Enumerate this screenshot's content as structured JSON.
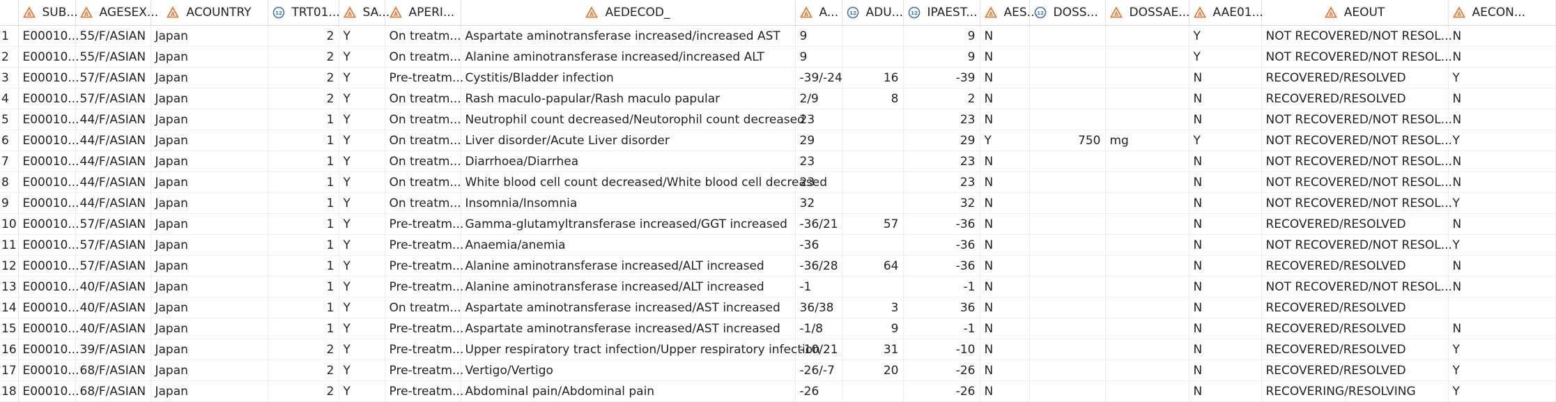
{
  "columns": [
    {
      "key": "rownum",
      "label": "",
      "icon": "none"
    },
    {
      "key": "sub",
      "label": "SUB...",
      "icon": "char-icon"
    },
    {
      "key": "agesex",
      "label": "AGESEX...",
      "icon": "char-icon"
    },
    {
      "key": "acountry",
      "label": "ACOUNTRY",
      "icon": "char-icon"
    },
    {
      "key": "trt01",
      "label": "TRT01...",
      "icon": "numeric-icon"
    },
    {
      "key": "sa",
      "label": "SA...",
      "icon": "char-icon"
    },
    {
      "key": "aperi",
      "label": "APERI...",
      "icon": "char-icon"
    },
    {
      "key": "aedecod",
      "label": "AEDECOD_",
      "icon": "char-icon"
    },
    {
      "key": "a",
      "label": "A...",
      "icon": "char-icon"
    },
    {
      "key": "adu",
      "label": "ADU...",
      "icon": "numeric-icon"
    },
    {
      "key": "ipaest",
      "label": "IPAEST...",
      "icon": "numeric-icon"
    },
    {
      "key": "aes",
      "label": "AES...",
      "icon": "char-icon"
    },
    {
      "key": "doss",
      "label": "DOSS...",
      "icon": "numeric-icon"
    },
    {
      "key": "dossae",
      "label": "DOSSAE...",
      "icon": "char-icon"
    },
    {
      "key": "aae01",
      "label": "AAE01...",
      "icon": "char-icon"
    },
    {
      "key": "aeout",
      "label": "AEOUT",
      "icon": "char-icon"
    },
    {
      "key": "aecon",
      "label": "AECON...",
      "icon": "char-icon"
    }
  ],
  "rows": [
    [
      "1",
      "E00010...",
      "55/F/ASIAN",
      "Japan",
      "2",
      "Y",
      "On treatm...",
      "Aspartate aminotransferase increased/increased AST",
      "9",
      "",
      "9",
      "N",
      "",
      "",
      "Y",
      "NOT RECOVERED/NOT RESOL...",
      "N"
    ],
    [
      "2",
      "E00010...",
      "55/F/ASIAN",
      "Japan",
      "2",
      "Y",
      "On treatm...",
      "Alanine aminotransferase increased/increased ALT",
      "9",
      "",
      "9",
      "N",
      "",
      "",
      "Y",
      "NOT RECOVERED/NOT RESOL...",
      "N"
    ],
    [
      "3",
      "E00010...",
      "57/F/ASIAN",
      "Japan",
      "2",
      "Y",
      "Pre-treatm...",
      "Cystitis/Bladder infection",
      "-39/-24",
      "16",
      "-39",
      "N",
      "",
      "",
      "N",
      "RECOVERED/RESOLVED",
      "Y"
    ],
    [
      "4",
      "E00010...",
      "57/F/ASIAN",
      "Japan",
      "2",
      "Y",
      "On treatm...",
      "Rash maculo-papular/Rash maculo papular",
      "2/9",
      "8",
      "2",
      "N",
      "",
      "",
      "N",
      "RECOVERED/RESOLVED",
      "N"
    ],
    [
      "5",
      "E00010...",
      "44/F/ASIAN",
      "Japan",
      "1",
      "Y",
      "On treatm...",
      "Neutrophil count decreased/Neutorophil count decreased",
      "23",
      "",
      "23",
      "N",
      "",
      "",
      "N",
      "NOT RECOVERED/NOT RESOL...",
      "N"
    ],
    [
      "6",
      "E00010...",
      "44/F/ASIAN",
      "Japan",
      "1",
      "Y",
      "On treatm...",
      "Liver disorder/Acute Liver disorder",
      "29",
      "",
      "29",
      "Y",
      "750",
      "mg",
      "Y",
      "NOT RECOVERED/NOT RESOL...",
      "Y"
    ],
    [
      "7",
      "E00010...",
      "44/F/ASIAN",
      "Japan",
      "1",
      "Y",
      "On treatm...",
      "Diarrhoea/Diarrhea",
      "23",
      "",
      "23",
      "N",
      "",
      "",
      "N",
      "NOT RECOVERED/NOT RESOL...",
      "N"
    ],
    [
      "8",
      "E00010...",
      "44/F/ASIAN",
      "Japan",
      "1",
      "Y",
      "On treatm...",
      "White blood cell count decreased/White blood cell decreased",
      "23",
      "",
      "23",
      "N",
      "",
      "",
      "N",
      "NOT RECOVERED/NOT RESOL...",
      "N"
    ],
    [
      "9",
      "E00010...",
      "44/F/ASIAN",
      "Japan",
      "1",
      "Y",
      "On treatm...",
      "Insomnia/Insomnia",
      "32",
      "",
      "32",
      "N",
      "",
      "",
      "N",
      "NOT RECOVERED/NOT RESOL...",
      "Y"
    ],
    [
      "10",
      "E00010...",
      "57/F/ASIAN",
      "Japan",
      "1",
      "Y",
      "Pre-treatm...",
      "Gamma-glutamyltransferase increased/GGT increased",
      "-36/21",
      "57",
      "-36",
      "N",
      "",
      "",
      "N",
      "RECOVERED/RESOLVED",
      "N"
    ],
    [
      "11",
      "E00010...",
      "57/F/ASIAN",
      "Japan",
      "1",
      "Y",
      "Pre-treatm...",
      "Anaemia/anemia",
      "-36",
      "",
      "-36",
      "N",
      "",
      "",
      "N",
      "NOT RECOVERED/NOT RESOL...",
      "Y"
    ],
    [
      "12",
      "E00010...",
      "57/F/ASIAN",
      "Japan",
      "1",
      "Y",
      "Pre-treatm...",
      "Alanine aminotransferase increased/ALT increased",
      "-36/28",
      "64",
      "-36",
      "N",
      "",
      "",
      "N",
      "RECOVERED/RESOLVED",
      "N"
    ],
    [
      "13",
      "E00010...",
      "40/F/ASIAN",
      "Japan",
      "1",
      "Y",
      "Pre-treatm...",
      "Alanine aminotransferase increased/ALT increased",
      "-1",
      "",
      "-1",
      "N",
      "",
      "",
      "N",
      "NOT RECOVERED/NOT RESOL...",
      "N"
    ],
    [
      "14",
      "E00010...",
      "40/F/ASIAN",
      "Japan",
      "1",
      "Y",
      "On treatm...",
      "Aspartate aminotransferase increased/AST increased",
      "36/38",
      "3",
      "36",
      "N",
      "",
      "",
      "N",
      "RECOVERED/RESOLVED",
      ""
    ],
    [
      "15",
      "E00010...",
      "40/F/ASIAN",
      "Japan",
      "1",
      "Y",
      "Pre-treatm...",
      "Aspartate aminotransferase increased/AST increased",
      "-1/8",
      "9",
      "-1",
      "N",
      "",
      "",
      "N",
      "RECOVERED/RESOLVED",
      "N"
    ],
    [
      "16",
      "E00010...",
      "39/F/ASIAN",
      "Japan",
      "2",
      "Y",
      "Pre-treatm...",
      "Upper respiratory tract infection/Upper respiratory infection",
      "-10/21",
      "31",
      "-10",
      "N",
      "",
      "",
      "N",
      "RECOVERED/RESOLVED",
      "Y"
    ],
    [
      "17",
      "E00010...",
      "68/F/ASIAN",
      "Japan",
      "2",
      "Y",
      "Pre-treatm...",
      "Vertigo/Vertigo",
      "-26/-7",
      "20",
      "-26",
      "N",
      "",
      "",
      "N",
      "RECOVERED/RESOLVED",
      "Y"
    ],
    [
      "18",
      "E00010...",
      "68/F/ASIAN",
      "Japan",
      "2",
      "Y",
      "Pre-treatm...",
      "Abdominal pain/Abdominal pain",
      "-26",
      "",
      "-26",
      "N",
      "",
      "",
      "N",
      "RECOVERING/RESOLVING",
      "Y"
    ]
  ],
  "numeric_columns": [
    "trt01",
    "adu",
    "ipaest",
    "doss"
  ],
  "colors": {
    "char_icon": "#e8772e",
    "numeric_icon": "#3a73b9"
  }
}
